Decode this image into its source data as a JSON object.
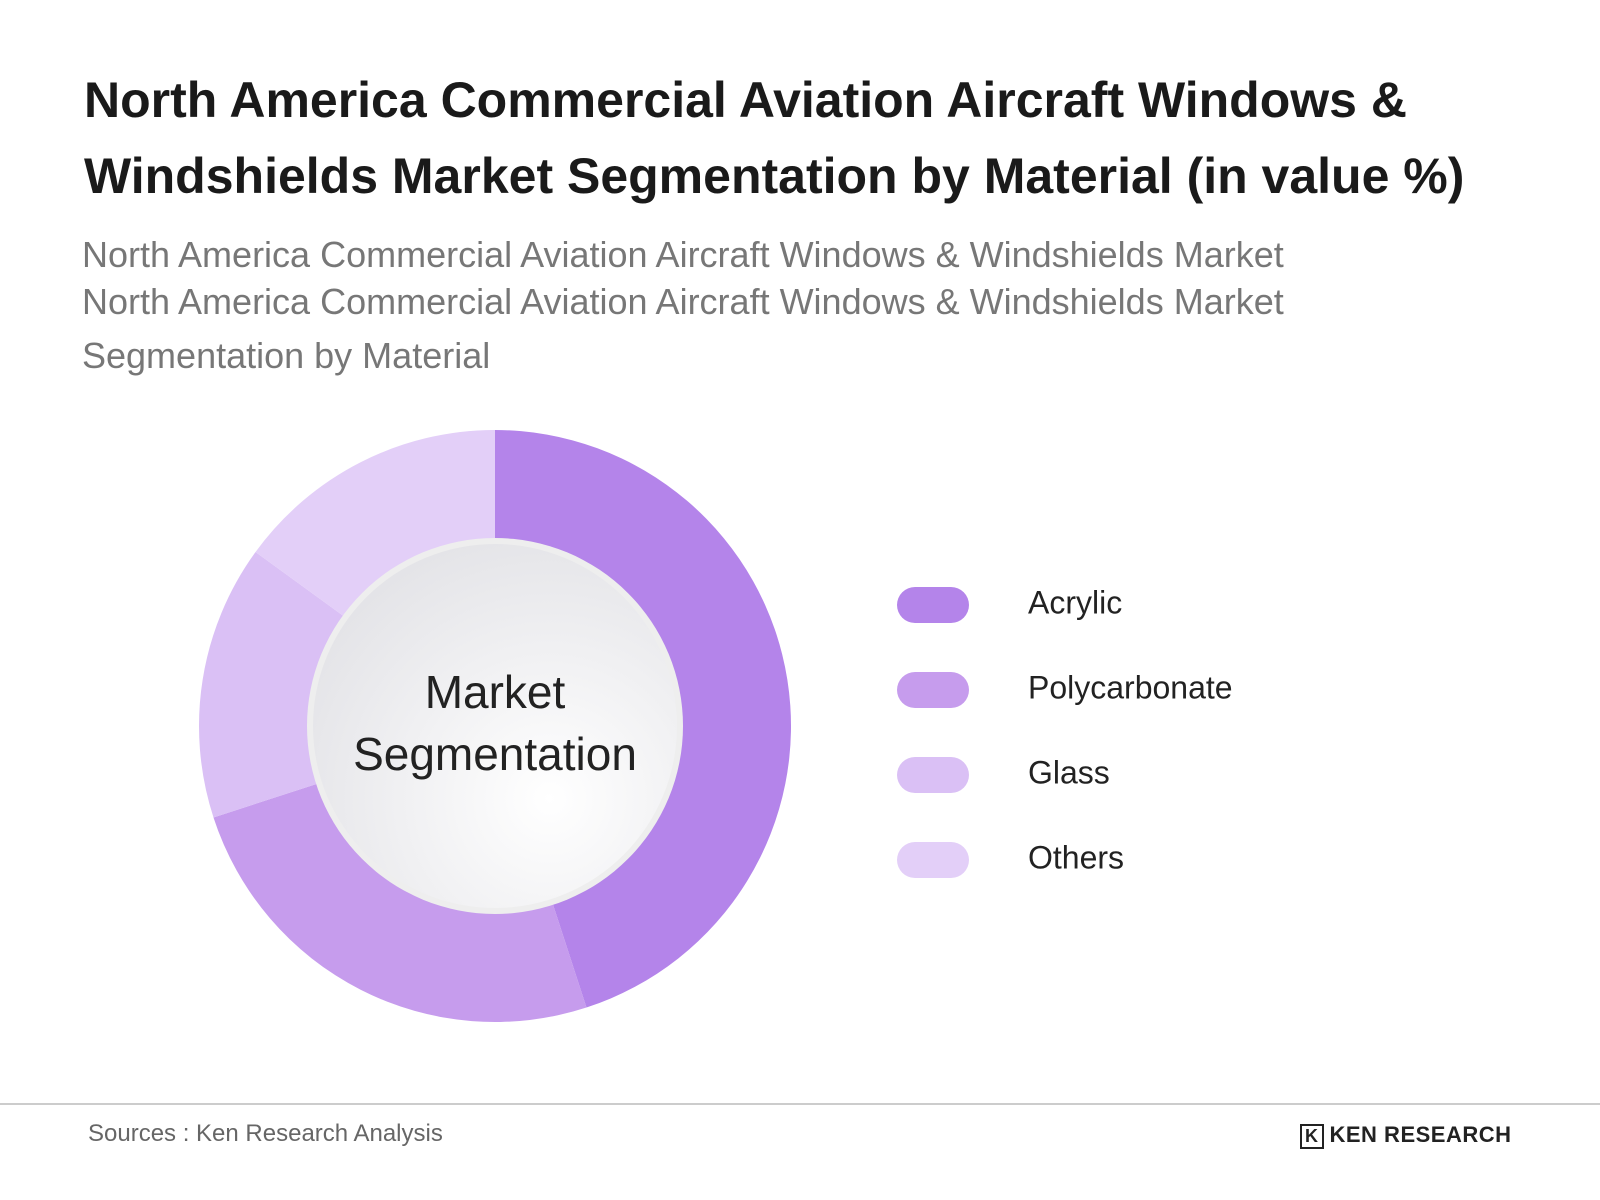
{
  "chart_data": {
    "type": "donut",
    "title": "North America Commercial Aviation Aircraft Windows & Windshields Market Segmentation by Material (in value %)",
    "subtitle": [
      "North America Commercial Aviation Aircraft Windows & Windshields Market",
      "North America Commercial Aviation Aircraft Windows & Windshields Market Segmentation by Material"
    ],
    "center_label": "Market Segmentation",
    "categories": [
      "Acrylic",
      "Polycarbonate",
      "Glass",
      "Others"
    ],
    "values": [
      45,
      25,
      15,
      15
    ],
    "colors": [
      "#b484ea",
      "#c69ced",
      "#dac0f5",
      "#e3cff8"
    ],
    "legend": "right"
  },
  "footer": {
    "source": "Sources : Ken Research Analysis",
    "logo": "KEN RESEARCH"
  }
}
